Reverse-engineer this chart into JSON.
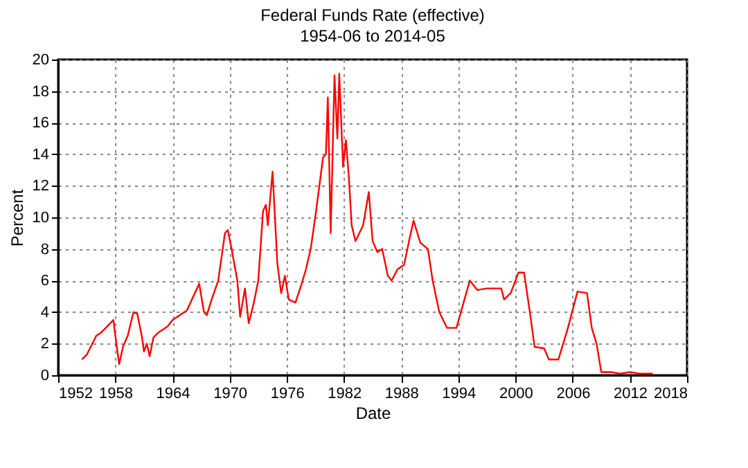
{
  "chart_data": {
    "type": "line",
    "title": "Federal Funds Rate (effective)",
    "subtitle": "1954-06 to 2014-05",
    "xlabel": "Date",
    "ylabel": "Percent",
    "x": [
      1954.5,
      1955,
      1955.5,
      1956,
      1956.5,
      1957,
      1957.8,
      1958.0,
      1958.4,
      1958.8,
      1959.3,
      1959.9,
      1960.3,
      1960.8,
      1961.0,
      1961.3,
      1961.6,
      1962,
      1962.5,
      1963,
      1963.5,
      1964,
      1965,
      1965.5,
      1966.5,
      1966.8,
      1967.3,
      1967.6,
      1968,
      1968.8,
      1969.5,
      1969.8,
      1970.2,
      1970.8,
      1971.1,
      1971.6,
      1972.0,
      1972.5,
      1973.0,
      1973.5,
      1973.8,
      1974.0,
      1974.5,
      1975.0,
      1975.4,
      1975.8,
      1976.2,
      1976.9,
      1977.5,
      1978.0,
      1978.5,
      1979.0,
      1979.8,
      1980.1,
      1980.3,
      1980.6,
      1981.0,
      1981.3,
      1981.5,
      1981.9,
      1982.2,
      1982.5,
      1982.8,
      1983.2,
      1984.0,
      1984.6,
      1985.0,
      1985.5,
      1986.0,
      1986.6,
      1987.0,
      1987.6,
      1988.3,
      1989.0,
      1989.3,
      1990.0,
      1990.8,
      1991.3,
      1992.0,
      1992.8,
      1993.8,
      1994.5,
      1995.2,
      1996.0,
      1997.0,
      1998.5,
      1998.8,
      1999.5,
      2000.3,
      2000.9,
      2001.5,
      2002.0,
      2003.0,
      2003.5,
      2004.5,
      2005.5,
      2006.5,
      2007.5,
      2008.0,
      2008.5,
      2009.0,
      2010,
      2011,
      2012,
      2013,
      2014.4
    ],
    "series": [
      {
        "color": "#ff0000",
        "values": [
          1.0,
          1.3,
          1.9,
          2.5,
          2.7,
          3.0,
          3.5,
          2.5,
          0.7,
          1.8,
          2.5,
          4.0,
          3.9,
          2.4,
          1.5,
          2.0,
          1.2,
          2.4,
          2.7,
          2.9,
          3.1,
          3.5,
          3.9,
          4.1,
          5.4,
          5.8,
          4.0,
          3.8,
          4.6,
          6.0,
          9.0,
          9.2,
          8.0,
          6.0,
          3.7,
          5.5,
          3.3,
          4.5,
          6.0,
          10.4,
          10.8,
          9.5,
          12.9,
          7.1,
          5.2,
          6.3,
          4.8,
          4.6,
          5.7,
          6.7,
          8.0,
          10.1,
          13.8,
          14.0,
          17.6,
          9.0,
          19.0,
          15.0,
          19.1,
          13.2,
          14.9,
          12.6,
          9.5,
          8.5,
          9.5,
          11.6,
          8.5,
          7.8,
          8.0,
          6.3,
          6.0,
          6.7,
          7.0,
          9.0,
          9.8,
          8.4,
          8.0,
          6.0,
          4.0,
          3.0,
          3.0,
          4.5,
          6.0,
          5.4,
          5.5,
          5.5,
          4.8,
          5.2,
          6.5,
          6.5,
          4.0,
          1.8,
          1.7,
          1.0,
          1.0,
          3.0,
          5.3,
          5.2,
          3.0,
          2.0,
          0.2,
          0.2,
          0.1,
          0.2,
          0.1,
          0.1
        ]
      }
    ],
    "xlim": [
      1952,
      2018
    ],
    "xticks": [
      1952,
      1958,
      1964,
      1970,
      1976,
      1982,
      1988,
      1994,
      2000,
      2006,
      2012,
      2018
    ],
    "ylim": [
      0,
      20
    ],
    "yticks": [
      0,
      2,
      4,
      6,
      8,
      10,
      12,
      14,
      16,
      18,
      20
    ],
    "grid": true
  }
}
